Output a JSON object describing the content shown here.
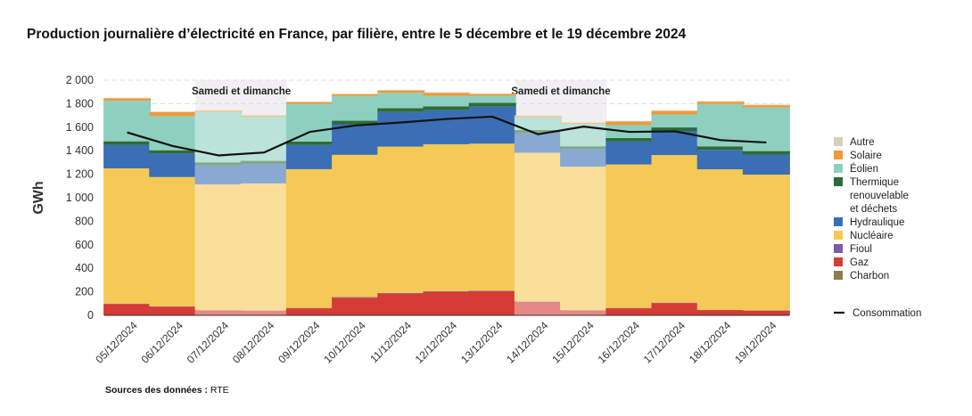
{
  "title": "Production journalière d’électricité en France, par filière, entre le 5 décembre et le 19 décembre 2024",
  "source_label": "Sources des données :",
  "source_value": "RTE",
  "chart_data": {
    "type": "bar",
    "stacked": true,
    "title": "Production journalière d’électricité en France, par filière, entre le 5 décembre et le 19 décembre 2024",
    "ylabel": "GWh",
    "ylim": [
      0,
      2000
    ],
    "yticks": [
      0,
      200,
      400,
      600,
      800,
      1000,
      1200,
      1400,
      1600,
      1800,
      2000
    ],
    "ytick_labels": [
      "0",
      "200",
      "400",
      "600",
      "800",
      "1 000",
      "1 200",
      "1 400",
      "1 600",
      "1 800",
      "2 000"
    ],
    "grid": true,
    "legend_position": "right",
    "categories": [
      "05/12/2024",
      "06/12/2024",
      "07/12/2024",
      "08/12/2024",
      "09/12/2024",
      "10/12/2024",
      "11/12/2024",
      "12/12/2024",
      "13/12/2024",
      "14/12/2024",
      "15/12/2024",
      "16/12/2024",
      "17/12/2024",
      "18/12/2024",
      "19/12/2024"
    ],
    "weekend_bands": [
      {
        "label": "Samedi et dimanche",
        "from": "07/12/2024",
        "to": "08/12/2024"
      },
      {
        "label": "Samedi et dimanche",
        "from": "14/12/2024",
        "to": "15/12/2024"
      }
    ],
    "series": [
      {
        "name": "Charbon",
        "color": "#8a7d55",
        "values": [
          0,
          0,
          0,
          0,
          0,
          0,
          0,
          0,
          0,
          0,
          0,
          0,
          0,
          0,
          0
        ]
      },
      {
        "name": "Gaz",
        "color": "#d63b35",
        "values": [
          97,
          73,
          42,
          40,
          60,
          150,
          185,
          200,
          205,
          115,
          42,
          60,
          105,
          45,
          40
        ]
      },
      {
        "name": "Fioul",
        "color": "#7b5ea7",
        "values": [
          3,
          3,
          2,
          2,
          3,
          5,
          5,
          5,
          5,
          3,
          2,
          3,
          3,
          2,
          2
        ]
      },
      {
        "name": "Nucléaire",
        "color": "#f5c955",
        "values": [
          1150,
          1100,
          1070,
          1080,
          1180,
          1210,
          1245,
          1250,
          1250,
          1265,
          1220,
          1220,
          1255,
          1195,
          1155
        ]
      },
      {
        "name": "Hydraulique",
        "color": "#3a6fb5",
        "values": [
          200,
          200,
          160,
          165,
          205,
          260,
          295,
          290,
          315,
          165,
          150,
          195,
          205,
          165,
          170
        ]
      },
      {
        "name": "Thermique renouvelable et déchets",
        "color": "#2e6b3a",
        "values": [
          30,
          28,
          27,
          27,
          30,
          30,
          32,
          32,
          32,
          28,
          24,
          30,
          30,
          30,
          30
        ]
      },
      {
        "name": "Éolien",
        "color": "#8ed0c0",
        "values": [
          345,
          290,
          430,
          375,
          320,
          210,
          130,
          90,
          60,
          110,
          190,
          110,
          110,
          360,
          370
        ]
      },
      {
        "name": "Solaire",
        "color": "#ee9a3a",
        "values": [
          20,
          35,
          10,
          10,
          15,
          15,
          20,
          25,
          15,
          10,
          10,
          30,
          30,
          20,
          20
        ]
      },
      {
        "name": "Autre",
        "color": "#d6d0bd",
        "values": [
          5,
          5,
          5,
          5,
          5,
          5,
          5,
          5,
          5,
          5,
          5,
          5,
          5,
          5,
          5
        ]
      }
    ],
    "line": {
      "name": "Consommation",
      "color": "#111111",
      "values": [
        1555,
        1440,
        1360,
        1385,
        1560,
        1615,
        1640,
        1670,
        1690,
        1540,
        1605,
        1560,
        1565,
        1490,
        1470
      ]
    },
    "legend_order": [
      "Autre",
      "Solaire",
      "Éolien",
      "Thermique renouvelable et déchets",
      "Hydraulique",
      "Nucléaire",
      "Fioul",
      "Gaz",
      "Charbon"
    ]
  }
}
